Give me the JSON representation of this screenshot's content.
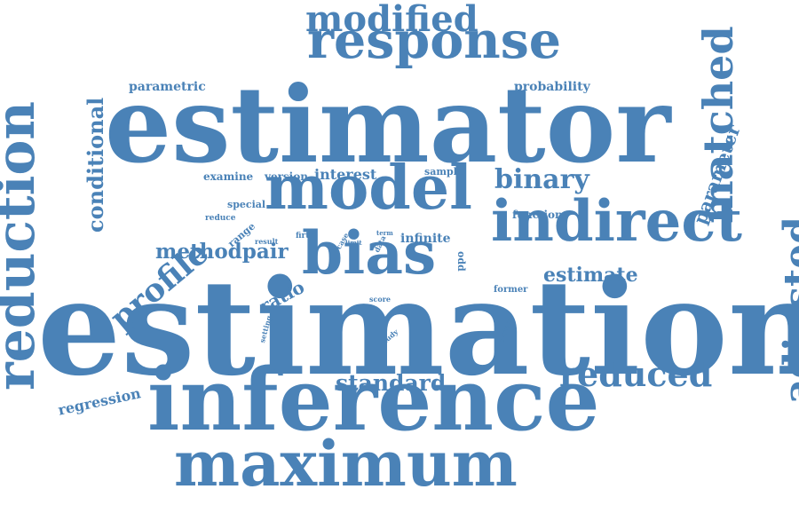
{
  "color": "#4a82b7",
  "words": [
    {
      "text": "estimation",
      "weight": 150,
      "vertical": false
    },
    {
      "text": "estimator",
      "weight": 120,
      "vertical": false
    },
    {
      "text": "inference",
      "weight": 98,
      "vertical": false
    },
    {
      "text": "maximum",
      "weight": 70,
      "vertical": false
    },
    {
      "text": "model",
      "weight": 68,
      "vertical": false
    },
    {
      "text": "indirect",
      "weight": 66,
      "vertical": false
    },
    {
      "text": "bias",
      "weight": 66,
      "vertical": false
    },
    {
      "text": "reduction",
      "weight": 62,
      "vertical": true
    },
    {
      "text": "response",
      "weight": 58,
      "vertical": false
    },
    {
      "text": "matched",
      "weight": 46,
      "vertical": true
    },
    {
      "text": "adjusted",
      "weight": 44,
      "vertical": true
    },
    {
      "text": "modified",
      "weight": 40,
      "vertical": false
    },
    {
      "text": "reduced",
      "weight": 38,
      "vertical": false
    },
    {
      "text": "profile",
      "weight": 36,
      "vertical": false
    },
    {
      "text": "binary",
      "weight": 30,
      "vertical": false
    },
    {
      "text": "standard",
      "weight": 26,
      "vertical": false
    },
    {
      "text": "conditional",
      "weight": 24,
      "vertical": true
    },
    {
      "text": "methodpair",
      "weight": 24,
      "vertical": false
    },
    {
      "text": "estimate",
      "weight": 22,
      "vertical": false
    },
    {
      "text": "parameter",
      "weight": 20,
      "vertical": true
    },
    {
      "text": "ratio",
      "weight": 20,
      "vertical": false
    },
    {
      "text": "regression",
      "weight": 16,
      "vertical": false
    },
    {
      "text": "interest",
      "weight": 16,
      "vertical": false
    },
    {
      "text": "parametric",
      "weight": 14,
      "vertical": false
    },
    {
      "text": "probability",
      "weight": 14,
      "vertical": false
    },
    {
      "text": "infinite",
      "weight": 14,
      "vertical": false
    },
    {
      "text": "examine",
      "weight": 12,
      "vertical": false
    },
    {
      "text": "version",
      "weight": 12,
      "vertical": false
    },
    {
      "text": "function",
      "weight": 12,
      "vertical": false
    },
    {
      "text": "sample",
      "weight": 11,
      "vertical": false
    },
    {
      "text": "special",
      "weight": 11,
      "vertical": false
    },
    {
      "text": "range",
      "weight": 11,
      "vertical": false
    },
    {
      "text": "odd",
      "weight": 11,
      "vertical": true
    },
    {
      "text": "former",
      "weight": 10,
      "vertical": false
    },
    {
      "text": "reduce",
      "weight": 9,
      "vertical": false
    },
    {
      "text": "firth",
      "weight": 9,
      "vertical": false
    },
    {
      "text": "result",
      "weight": 8,
      "vertical": false
    },
    {
      "text": "case",
      "weight": 8,
      "vertical": false
    },
    {
      "text": "limit",
      "weight": 7,
      "vertical": false
    },
    {
      "text": "data",
      "weight": 8,
      "vertical": false
    },
    {
      "text": "term",
      "weight": 7,
      "vertical": false
    },
    {
      "text": "score",
      "weight": 8,
      "vertical": false
    },
    {
      "text": "setting",
      "weight": 8,
      "vertical": false
    },
    {
      "text": "study",
      "weight": 8,
      "vertical": false
    },
    {
      "text": "certain",
      "weight": 8,
      "vertical": false
    }
  ]
}
